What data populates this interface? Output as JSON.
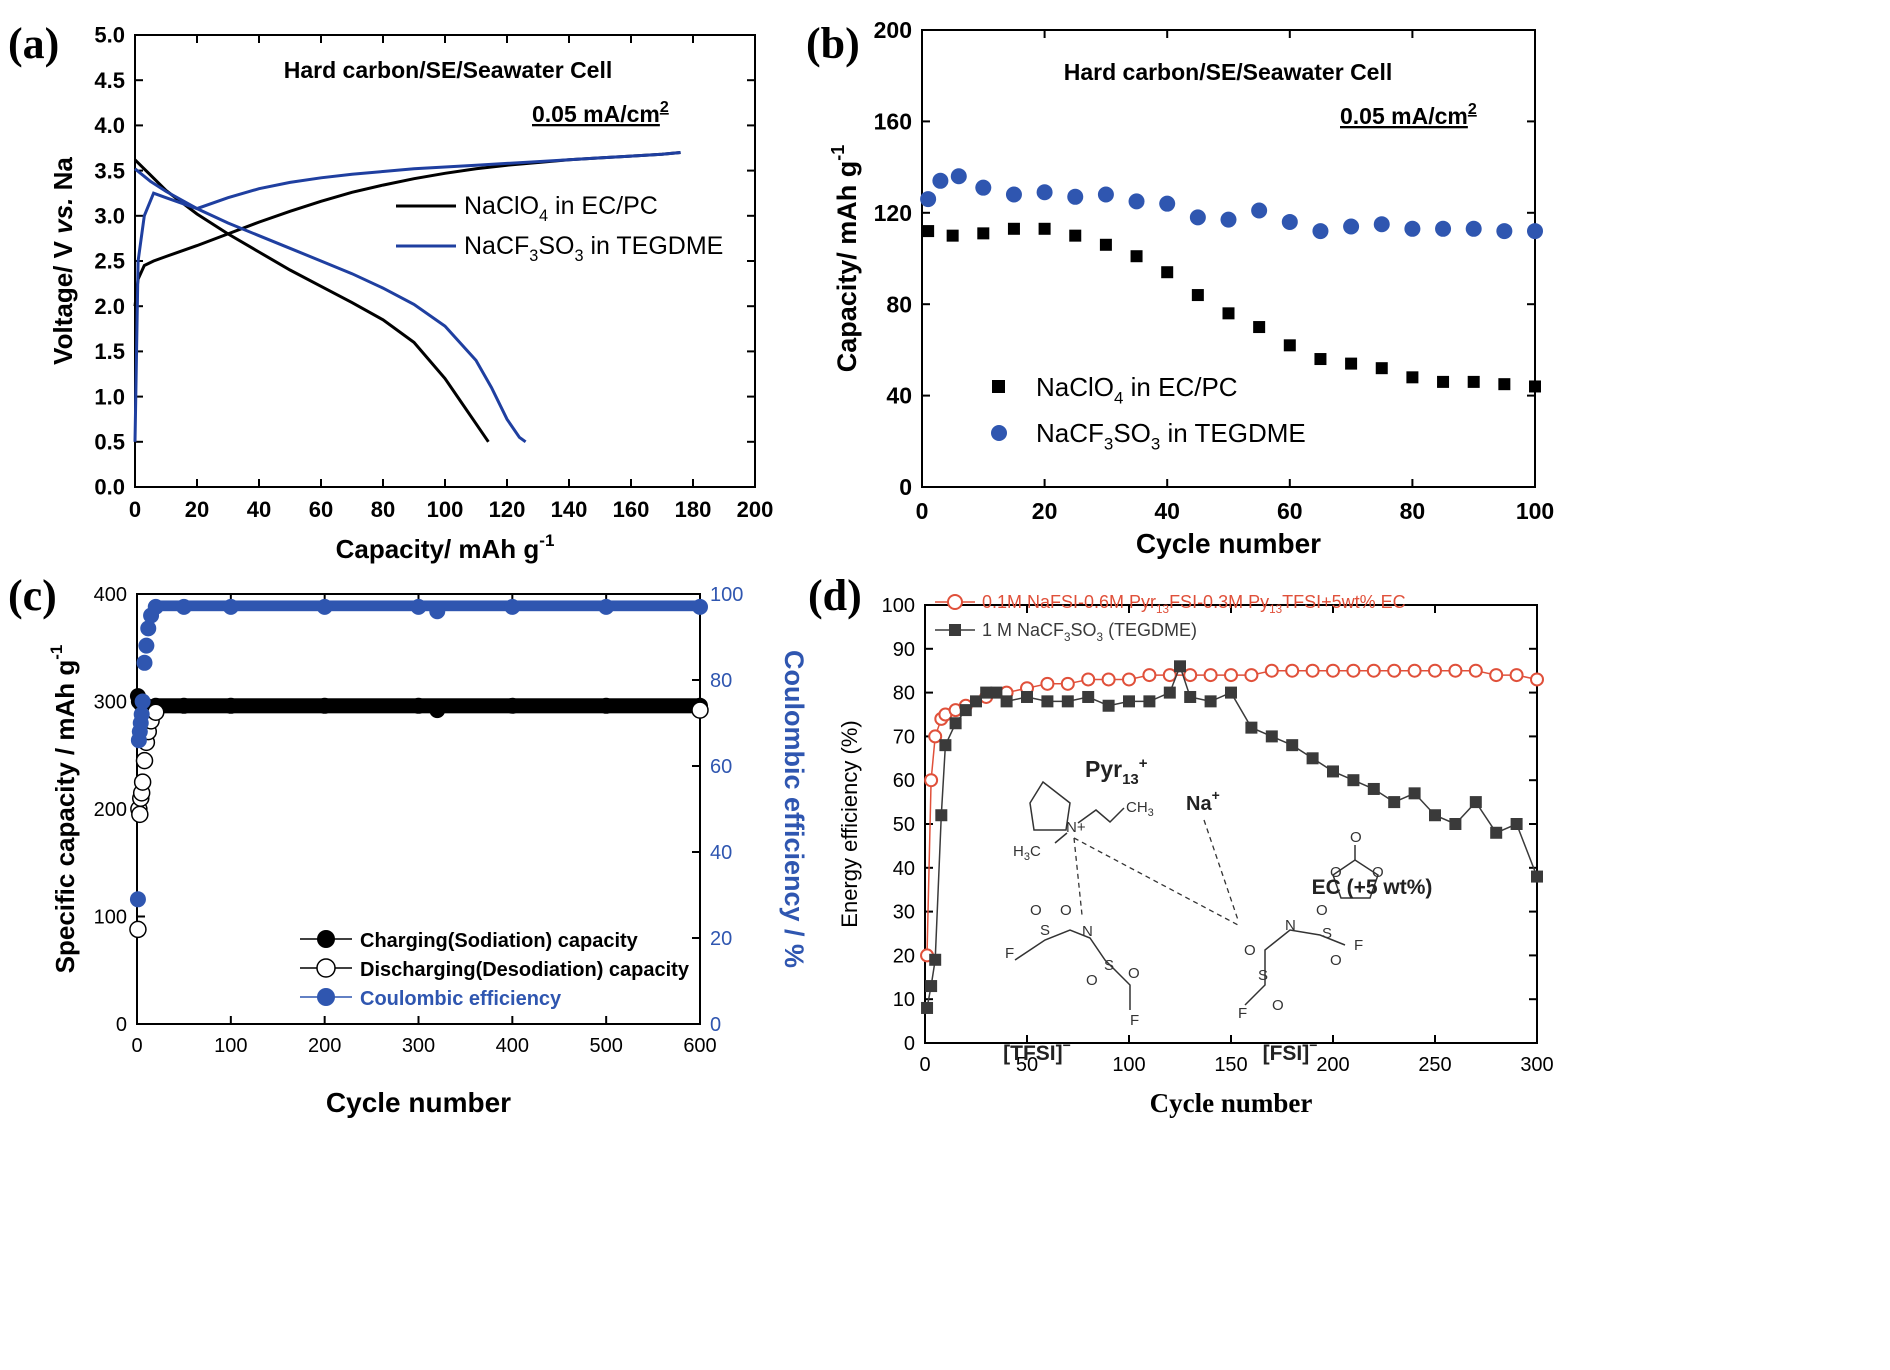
{
  "panels": {
    "a": {
      "label": "(a)",
      "annotation": "Hard carbon/SE/Seawater Cell",
      "rate": "0.05 mA/cm",
      "rate_sup": "2"
    },
    "b": {
      "label": "(b)",
      "annotation": "Hard carbon/SE/Seawater Cell",
      "rate": "0.05 mA/cm",
      "rate_sup": "2"
    },
    "c": {
      "label": "(c)"
    },
    "d": {
      "label": "(d)",
      "inset": {
        "pyr": "Pyr",
        "pyr_sub": "13",
        "pyr_sup": "+",
        "ch3": "CH",
        "ch3_sub": "3",
        "h3c": "H",
        "h3c_sub": "3",
        "h3c_c": "C",
        "nplus": "N+",
        "na": "Na",
        "na_sup": "+",
        "ec": "EC (+5 wt%)",
        "tfsi": "[TFSI]",
        "tfsi_sup": "−",
        "fsi": "[FSI]",
        "fsi_sup": "−",
        "atom_n": "N",
        "atom_s": "S",
        "atom_o": "O",
        "atom_f": "F"
      }
    }
  },
  "chart_data": [
    {
      "id": "a",
      "type": "line",
      "title": "",
      "xlabel": "Capacity/ mAh g",
      "xlabel_sup": "-1",
      "ylabel_parts": [
        "Voltage/ V ",
        "vs.",
        " Na"
      ],
      "xlim": [
        0,
        200
      ],
      "ylim": [
        0,
        5.0
      ],
      "xticks": [
        "0",
        "20",
        "40",
        "60",
        "80",
        "100",
        "120",
        "140",
        "160",
        "180",
        "200"
      ],
      "yticks": [
        "0.0",
        "0.5",
        "1.0",
        "1.5",
        "2.0",
        "2.5",
        "3.0",
        "3.5",
        "4.0",
        "4.5",
        "5.0"
      ],
      "legend": [
        {
          "text": "NaClO",
          "sub": "4",
          "rest": " in EC/PC",
          "color": "#000000"
        },
        {
          "text": "NaCF",
          "sub": "3",
          "text2": "SO",
          "sub2": "3",
          "rest": " in TEGDME",
          "color": "#1f3fa0"
        }
      ],
      "series": [
        {
          "name": "NaClO4 in EC/PC (charge)",
          "color": "#000000",
          "x": [
            0,
            1,
            3,
            6,
            10,
            20,
            30,
            40,
            50,
            60,
            70,
            80,
            90,
            100,
            110,
            120,
            130,
            140,
            150,
            160,
            170,
            176
          ],
          "y": [
            2.0,
            2.3,
            2.45,
            2.5,
            2.55,
            2.67,
            2.8,
            2.93,
            3.05,
            3.16,
            3.26,
            3.34,
            3.41,
            3.47,
            3.52,
            3.56,
            3.59,
            3.62,
            3.64,
            3.66,
            3.68,
            3.7
          ]
        },
        {
          "name": "NaClO4 in EC/PC (discharge)",
          "color": "#000000",
          "x": [
            0,
            5,
            10,
            20,
            30,
            40,
            50,
            60,
            70,
            80,
            90,
            100,
            105,
            110,
            114
          ],
          "y": [
            3.62,
            3.45,
            3.28,
            3.02,
            2.8,
            2.6,
            2.4,
            2.22,
            2.04,
            1.85,
            1.6,
            1.2,
            0.95,
            0.7,
            0.5
          ]
        },
        {
          "name": "NaCF3SO3 in TEGDME (charge)",
          "color": "#1f3fa0",
          "x": [
            0,
            1,
            3,
            6,
            10,
            20,
            30,
            40,
            50,
            60,
            70,
            80,
            90,
            100,
            110,
            120,
            130,
            140,
            150,
            160,
            170,
            176
          ],
          "y": [
            0.5,
            2.5,
            3.0,
            3.25,
            3.2,
            3.08,
            3.2,
            3.3,
            3.37,
            3.42,
            3.46,
            3.49,
            3.52,
            3.54,
            3.56,
            3.58,
            3.6,
            3.62,
            3.64,
            3.66,
            3.68,
            3.7
          ]
        },
        {
          "name": "NaCF3SO3 in TEGDME (discharge)",
          "color": "#1f3fa0",
          "x": [
            0,
            5,
            10,
            20,
            30,
            40,
            50,
            60,
            70,
            80,
            90,
            100,
            110,
            115,
            120,
            124,
            126
          ],
          "y": [
            3.52,
            3.38,
            3.27,
            3.08,
            2.92,
            2.78,
            2.64,
            2.5,
            2.36,
            2.2,
            2.02,
            1.78,
            1.4,
            1.1,
            0.75,
            0.55,
            0.5
          ]
        }
      ]
    },
    {
      "id": "b",
      "type": "scatter",
      "title": "",
      "xlabel": "Cycle number",
      "ylabel": "Capacity/ mAh g",
      "ylabel_sup": "-1",
      "xlim": [
        0,
        100
      ],
      "ylim": [
        0,
        200
      ],
      "xticks": [
        "0",
        "20",
        "40",
        "60",
        "80",
        "100"
      ],
      "yticks": [
        "0",
        "40",
        "80",
        "120",
        "160",
        "200"
      ],
      "legend": [
        {
          "text": "NaClO",
          "sub": "4",
          "rest": " in EC/PC",
          "color": "#000000",
          "marker": "square"
        },
        {
          "text": "NaCF",
          "sub": "3",
          "text2": "SO",
          "sub2": "3",
          "rest": " in TEGDME",
          "color": "#2f56b0",
          "marker": "circle"
        }
      ],
      "series": [
        {
          "name": "NaClO4 in EC/PC",
          "color": "#000000",
          "marker": "square",
          "x": [
            1,
            5,
            10,
            15,
            20,
            25,
            30,
            35,
            40,
            45,
            50,
            55,
            60,
            65,
            70,
            75,
            80,
            85,
            90,
            95,
            100
          ],
          "y": [
            112,
            110,
            111,
            113,
            113,
            110,
            106,
            101,
            94,
            84,
            76,
            70,
            62,
            56,
            54,
            52,
            48,
            46,
            46,
            45,
            44
          ]
        },
        {
          "name": "NaCF3SO3 in TEGDME",
          "color": "#2f56b0",
          "marker": "circle",
          "x": [
            1,
            3,
            6,
            10,
            15,
            20,
            25,
            30,
            35,
            40,
            45,
            50,
            55,
            60,
            65,
            70,
            75,
            80,
            85,
            90,
            95,
            100
          ],
          "y": [
            126,
            134,
            136,
            131,
            128,
            129,
            127,
            128,
            125,
            124,
            118,
            117,
            121,
            116,
            112,
            114,
            115,
            113,
            113,
            113,
            112,
            112
          ]
        }
      ]
    },
    {
      "id": "c",
      "type": "scatter",
      "title": "",
      "xlabel": "Cycle number",
      "ylabel": "Specific capacity / mAh g",
      "ylabel_sup": "-1",
      "y2label": "Coulombic efficiency / %",
      "xlim": [
        0,
        600
      ],
      "ylim": [
        0,
        400
      ],
      "y2lim": [
        0,
        100
      ],
      "xticks": [
        "0",
        "100",
        "200",
        "300",
        "400",
        "500",
        "600"
      ],
      "yticks": [
        "0",
        "100",
        "200",
        "300",
        "400"
      ],
      "y2ticks": [
        "0",
        "20",
        "40",
        "60",
        "80",
        "100"
      ],
      "legend": [
        {
          "text": "Charging(Sodiation) capacity",
          "color": "#000000",
          "marker": "filled"
        },
        {
          "text": "Discharging(Desodiation) capacity",
          "color": "#000000",
          "marker": "open"
        },
        {
          "text": "Coulombic efficiency",
          "color": "#2f56b0",
          "marker": "filled"
        }
      ],
      "series": [
        {
          "name": "Charging(Sodiation) capacity",
          "color": "#000000",
          "axis": "y",
          "x": [
            1,
            2,
            4,
            6,
            10,
            20,
            50,
            100,
            200,
            300,
            320,
            400,
            500,
            600
          ],
          "y": [
            305,
            300,
            298,
            297,
            296,
            296,
            296,
            296,
            296,
            296,
            292,
            296,
            296,
            296
          ]
        },
        {
          "name": "Discharging(Desodiation) capacity",
          "color": "#000000",
          "axis": "y",
          "x": [
            1,
            2,
            3,
            4,
            5,
            6,
            8,
            10,
            12,
            15,
            20,
            600
          ],
          "y": [
            88,
            200,
            195,
            210,
            215,
            225,
            245,
            262,
            272,
            282,
            290,
            292
          ]
        },
        {
          "name": "Coulombic efficiency",
          "color": "#2f56b0",
          "axis": "y2",
          "x": [
            1,
            2,
            3,
            4,
            5,
            6,
            8,
            10,
            12,
            15,
            20,
            50,
            100,
            200,
            300,
            320,
            400,
            500,
            600
          ],
          "y": [
            29,
            66,
            68,
            70,
            72,
            75,
            84,
            88,
            92,
            95,
            97,
            97,
            97,
            97,
            97,
            96,
            97,
            97,
            97
          ]
        }
      ]
    },
    {
      "id": "d",
      "type": "scatter",
      "title": "",
      "xlabel": "Cycle number",
      "ylabel": "Energy efficiency (%)",
      "xlim": [
        0,
        300
      ],
      "ylim": [
        0,
        100
      ],
      "xticks": [
        "0",
        "50",
        "100",
        "150",
        "200",
        "250",
        "300"
      ],
      "yticks": [
        "0",
        "10",
        "20",
        "30",
        "40",
        "50",
        "60",
        "70",
        "80",
        "90",
        "100"
      ],
      "legend": [
        {
          "text": "0.1M NaFSI-0.6M Pyr",
          "sub": "13",
          "text2": "FSI-0.3M Py",
          "sub2": "13",
          "rest": "TFSI+5wt% EC",
          "color": "#e0503a",
          "marker": "open"
        },
        {
          "text": "1 M NaCF",
          "sub": "3",
          "text2": "SO",
          "sub2": "3",
          "rest": " (TEGDME)",
          "color": "#3a3a3a",
          "marker": "square"
        }
      ],
      "series": [
        {
          "name": "0.1M NaFSI-0.6M Pyr13FSI-0.3M Py13TFSI+5wt% EC",
          "color": "#e0503a",
          "marker": "circle-open",
          "x": [
            1,
            3,
            5,
            8,
            10,
            15,
            20,
            30,
            40,
            50,
            60,
            70,
            80,
            90,
            100,
            110,
            120,
            130,
            140,
            150,
            160,
            170,
            180,
            190,
            200,
            210,
            220,
            230,
            240,
            250,
            260,
            270,
            280,
            290,
            300
          ],
          "y": [
            20,
            60,
            70,
            74,
            75,
            76,
            77,
            79,
            80,
            81,
            82,
            82,
            83,
            83,
            83,
            84,
            84,
            84,
            84,
            84,
            84,
            85,
            85,
            85,
            85,
            85,
            85,
            85,
            85,
            85,
            85,
            85,
            84,
            84,
            83
          ]
        },
        {
          "name": "1 M NaCF3SO3 (TEGDME)",
          "color": "#3a3a3a",
          "marker": "square",
          "x": [
            1,
            3,
            5,
            8,
            10,
            15,
            20,
            25,
            30,
            35,
            40,
            50,
            60,
            70,
            80,
            90,
            100,
            110,
            120,
            125,
            130,
            140,
            150,
            160,
            170,
            180,
            190,
            200,
            210,
            220,
            230,
            240,
            250,
            260,
            270,
            280,
            290,
            300
          ],
          "y": [
            8,
            13,
            19,
            52,
            68,
            73,
            76,
            78,
            80,
            80,
            78,
            79,
            78,
            78,
            79,
            77,
            78,
            78,
            80,
            86,
            79,
            78,
            80,
            72,
            70,
            68,
            65,
            62,
            60,
            58,
            55,
            57,
            52,
            50,
            55,
            48,
            50,
            38
          ]
        }
      ]
    }
  ]
}
